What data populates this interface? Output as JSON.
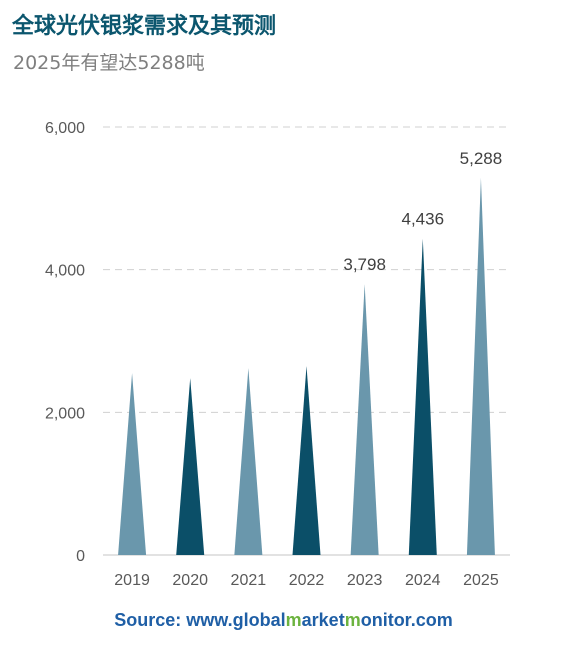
{
  "header": {
    "title": "全球光伏银浆需求及其预测",
    "subtitle": "2025年有望达5288吨"
  },
  "colors": {
    "light_bar": "#6a97ac",
    "dark_bar": "#0b4f68",
    "title": "#0b566e",
    "axis_text": "#595959",
    "source_blue": "#1f5fa6",
    "source_green": "#6cb33f"
  },
  "source": {
    "prefix": "Source: www.",
    "part1": "global",
    "m1": "m",
    "part2": "arket",
    "m2": "m",
    "part3": "onitor.com"
  },
  "chart_data": {
    "type": "bar",
    "categories": [
      "2019",
      "2020",
      "2021",
      "2022",
      "2023",
      "2024",
      "2025"
    ],
    "values": [
      2550,
      2480,
      2620,
      2650,
      3798,
      4436,
      5288
    ],
    "value_labels": [
      "",
      "",
      "",
      "",
      "3,798",
      "4,436",
      "5,288"
    ],
    "bar_shades": [
      "light",
      "dark",
      "light",
      "dark",
      "light",
      "dark",
      "light"
    ],
    "ylim": [
      0,
      6000
    ],
    "yticks": [
      0,
      2000,
      4000,
      6000
    ],
    "ytick_labels": [
      "0",
      "2,000",
      "4,000",
      "6,000"
    ],
    "xlabel": "",
    "ylabel": "",
    "grid": true,
    "bar_shape": "triangle"
  }
}
